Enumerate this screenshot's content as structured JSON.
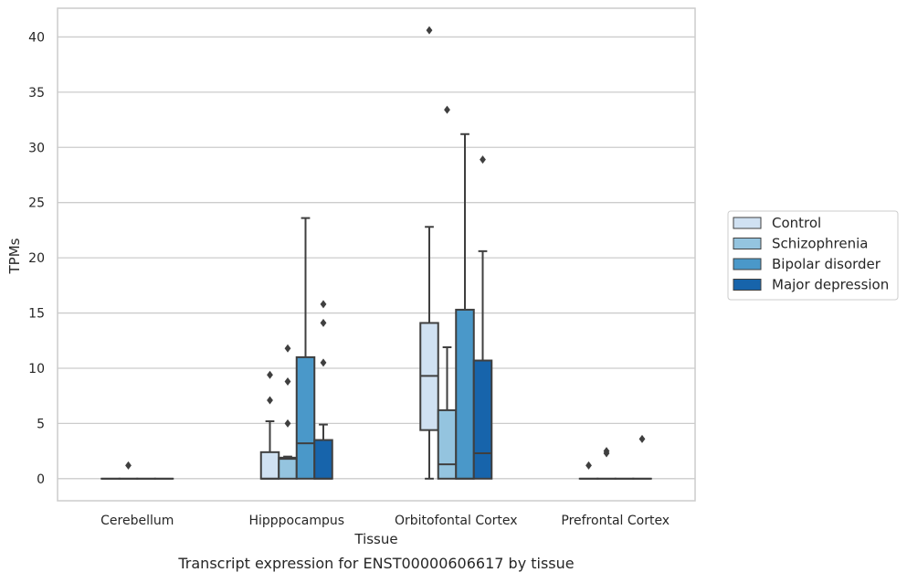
{
  "chart_data": {
    "type": "boxplot",
    "caption": "Transcript expression for ENST00000606617 by tissue",
    "xlabel": "Tissue",
    "ylabel": "TPMs",
    "ylim": [
      -2,
      42.6
    ],
    "yticks": [
      0,
      5,
      10,
      15,
      20,
      25,
      30,
      35,
      40
    ],
    "grid": "horizontal",
    "legend_position": "right",
    "categories": [
      "Cerebellum",
      "Hipppocampus",
      "Orbitofontal Cortex",
      "Prefrontal Cortex"
    ],
    "series": [
      {
        "name": "Control",
        "color": "#d0e1f2",
        "boxes": [
          {
            "min": 0,
            "q1": 0,
            "median": 0,
            "q3": 0,
            "max": 0,
            "outliers": []
          },
          {
            "min": 0,
            "q1": 0,
            "median": 0,
            "q3": 2.4,
            "max": 5.2,
            "outliers": [
              7.1,
              9.4
            ]
          },
          {
            "min": 0,
            "q1": 4.4,
            "median": 9.3,
            "q3": 14.1,
            "max": 22.8,
            "outliers": [
              40.6
            ]
          },
          {
            "min": 0,
            "q1": 0,
            "median": 0,
            "q3": 0,
            "max": 0,
            "outliers": [
              1.2
            ]
          }
        ]
      },
      {
        "name": "Schizophrenia",
        "color": "#94c4df",
        "boxes": [
          {
            "min": 0,
            "q1": 0,
            "median": 0,
            "q3": 0,
            "max": 0,
            "outliers": [
              1.2
            ]
          },
          {
            "min": 0,
            "q1": 0,
            "median": 1.8,
            "q3": 1.9,
            "max": 2.0,
            "outliers": [
              5.0,
              8.8,
              11.8
            ]
          },
          {
            "min": 0,
            "q1": 0,
            "median": 1.3,
            "q3": 6.2,
            "max": 11.9,
            "outliers": [
              33.4
            ]
          },
          {
            "min": 0,
            "q1": 0,
            "median": 0,
            "q3": 0,
            "max": 0,
            "outliers": [
              2.3,
              2.5
            ]
          }
        ]
      },
      {
        "name": "Bipolar disorder",
        "color": "#4a98c9",
        "boxes": [
          {
            "min": 0,
            "q1": 0,
            "median": 0,
            "q3": 0,
            "max": 0,
            "outliers": []
          },
          {
            "min": 0,
            "q1": 0,
            "median": 3.2,
            "q3": 11.0,
            "max": 23.6,
            "outliers": []
          },
          {
            "min": 0,
            "q1": 0,
            "median": 0,
            "q3": 15.3,
            "max": 31.2,
            "outliers": []
          },
          {
            "min": 0,
            "q1": 0,
            "median": 0,
            "q3": 0,
            "max": 0,
            "outliers": []
          }
        ]
      },
      {
        "name": "Major depression",
        "color": "#1764ab",
        "boxes": [
          {
            "min": 0,
            "q1": 0,
            "median": 0,
            "q3": 0,
            "max": 0,
            "outliers": []
          },
          {
            "min": 0,
            "q1": 0,
            "median": 0,
            "q3": 3.5,
            "max": 4.9,
            "outliers": [
              10.5,
              14.1,
              15.8
            ]
          },
          {
            "min": 0,
            "q1": 0,
            "median": 2.3,
            "q3": 10.7,
            "max": 20.6,
            "outliers": [
              28.9
            ]
          },
          {
            "min": 0,
            "q1": 0,
            "median": 0,
            "q3": 0,
            "max": 0,
            "outliers": [
              3.6
            ]
          }
        ]
      }
    ]
  }
}
